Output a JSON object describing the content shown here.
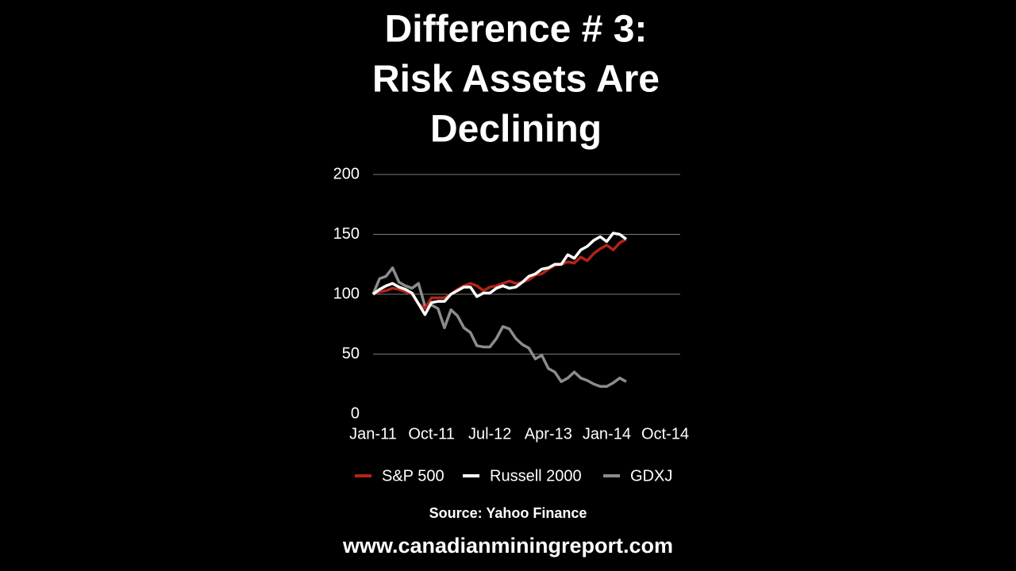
{
  "chart_data": {
    "type": "line",
    "title": [
      "Difference # 3:",
      "Risk Assets Are",
      "Declining"
    ],
    "categories": [
      "Jan-11",
      null,
      null,
      null,
      null,
      null,
      null,
      null,
      null,
      "Oct-11",
      null,
      null,
      null,
      null,
      null,
      null,
      null,
      null,
      "Jul-12",
      null,
      null,
      null,
      null,
      null,
      null,
      null,
      null,
      "Apr-13",
      null,
      null,
      null,
      null,
      null,
      null,
      null,
      null,
      "Jan-14",
      null,
      null,
      null,
      null,
      null,
      null,
      null,
      null,
      "Oct-14"
    ],
    "series": [
      {
        "name": "S&P 500",
        "color": "#b22418",
        "values": [
          100,
          102,
          103,
          105,
          104,
          102,
          100,
          92,
          88,
          97,
          97,
          97,
          100,
          104,
          107,
          109,
          107,
          103,
          106,
          107,
          109,
          111,
          109,
          110,
          112,
          116,
          117,
          121,
          124,
          125,
          127,
          126,
          131,
          128,
          134,
          138,
          141,
          137,
          143,
          146,
          null,
          null,
          null,
          null,
          null,
          null
        ]
      },
      {
        "name": "Russell 2000",
        "color": "#ffffff",
        "values": [
          100,
          104,
          107,
          109,
          106,
          104,
          101,
          92,
          83,
          93,
          94,
          94,
          100,
          103,
          106,
          106,
          98,
          101,
          101,
          105,
          107,
          105,
          106,
          110,
          115,
          117,
          121,
          122,
          125,
          125,
          133,
          130,
          137,
          140,
          145,
          148,
          144,
          151,
          150,
          146,
          null,
          null,
          null,
          null,
          null,
          null
        ]
      },
      {
        "name": "GDXJ",
        "color": "#8c8c8c",
        "values": [
          100,
          113,
          115,
          122,
          110,
          107,
          105,
          109,
          90,
          91,
          88,
          72,
          87,
          82,
          72,
          68,
          57,
          56,
          56,
          63,
          73,
          71,
          63,
          58,
          55,
          46,
          49,
          38,
          35,
          27,
          30,
          35,
          30,
          28,
          25,
          23,
          23,
          26,
          30,
          27,
          null,
          null,
          null,
          null,
          null,
          null
        ]
      }
    ],
    "ylim": [
      0,
      200
    ],
    "yticks": [
      0,
      50,
      100,
      150,
      200
    ],
    "grid": true,
    "legend": "bottom",
    "source": "Source: Yahoo Finance",
    "website": "www.canadianminingreport.com"
  }
}
